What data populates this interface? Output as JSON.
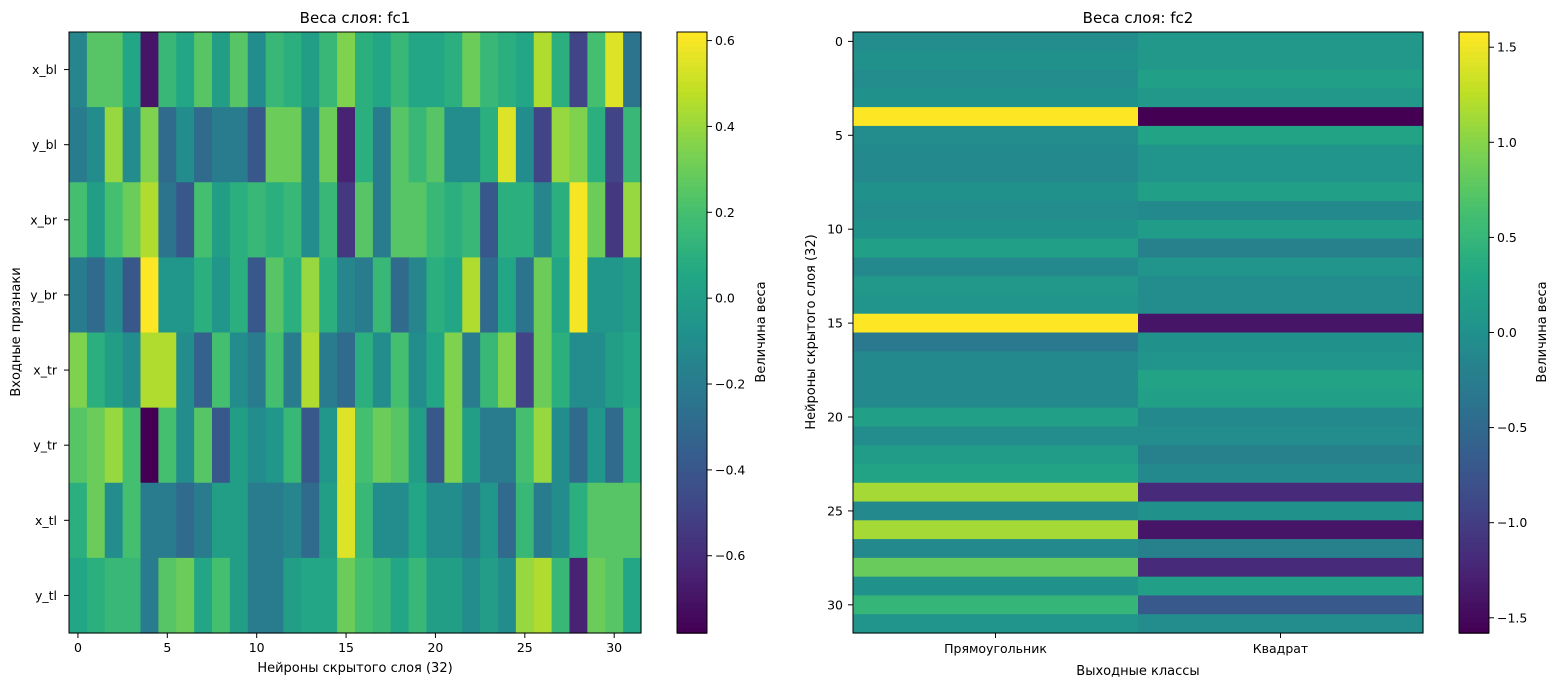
{
  "chart_data": [
    {
      "type": "heatmap",
      "title": "Веса слоя: fc1",
      "xlabel": "Нейроны скрытого слоя (32)",
      "ylabel": "Входные признаки",
      "rows": [
        "x_bl",
        "y_bl",
        "x_br",
        "y_br",
        "x_tr",
        "y_tr",
        "x_tl",
        "y_tl"
      ],
      "x_ticks": [
        0,
        5,
        10,
        15,
        20,
        25,
        30
      ],
      "colormap": "viridis",
      "vmin": -0.78,
      "vmax": 0.62,
      "colorbar": {
        "label": "Величина веса",
        "ticks": [
          -0.6,
          -0.4,
          -0.2,
          0.0,
          0.2,
          0.4,
          0.6
        ],
        "tick_labels": [
          "−0.6",
          "−0.4",
          "−0.2",
          "0.0",
          "0.2",
          "0.4",
          "0.6"
        ]
      },
      "values": [
        [
          -0.15,
          0.25,
          0.25,
          0.05,
          -0.7,
          0.15,
          0.05,
          0.25,
          0.0,
          0.25,
          -0.1,
          0.15,
          0.1,
          0.0,
          0.15,
          0.35,
          0.1,
          0.05,
          0.15,
          0.05,
          0.05,
          0.1,
          0.3,
          0.15,
          0.1,
          0.05,
          0.45,
          0.1,
          -0.5,
          0.2,
          0.55,
          -0.25
        ],
        [
          -0.2,
          -0.1,
          0.4,
          -0.1,
          0.35,
          -0.3,
          -0.1,
          -0.3,
          -0.2,
          -0.2,
          -0.4,
          0.3,
          0.3,
          -0.1,
          0.3,
          -0.65,
          0.1,
          -0.2,
          0.25,
          0.15,
          0.25,
          -0.1,
          -0.1,
          0.1,
          0.55,
          -0.1,
          -0.5,
          0.4,
          0.35,
          0.1,
          -0.5,
          0.15
        ],
        [
          0.2,
          0.0,
          0.2,
          0.3,
          0.45,
          -0.25,
          -0.4,
          0.2,
          0.0,
          0.1,
          0.15,
          0.1,
          0.15,
          -0.1,
          0.15,
          -0.55,
          0.25,
          -0.2,
          0.25,
          0.25,
          0.15,
          0.1,
          0.15,
          -0.4,
          0.1,
          0.1,
          -0.15,
          0.1,
          0.6,
          0.3,
          -0.55,
          0.4
        ],
        [
          -0.2,
          -0.3,
          -0.1,
          -0.4,
          0.62,
          -0.05,
          -0.05,
          0.1,
          -0.05,
          0.1,
          -0.4,
          0.25,
          0.1,
          0.4,
          0.1,
          -0.15,
          -0.2,
          0.15,
          -0.3,
          -0.15,
          0.1,
          0.05,
          0.45,
          -0.3,
          0.05,
          -0.25,
          0.3,
          0.05,
          0.6,
          -0.05,
          -0.05,
          0.0
        ],
        [
          0.35,
          0.1,
          0.0,
          -0.1,
          0.45,
          0.45,
          -0.1,
          -0.35,
          0.2,
          -0.1,
          -0.2,
          0.2,
          -0.2,
          0.45,
          -0.2,
          -0.3,
          0.1,
          -0.1,
          0.2,
          -0.1,
          0.05,
          0.35,
          -0.2,
          0.15,
          0.35,
          -0.5,
          0.3,
          0.1,
          -0.1,
          -0.1,
          0.0,
          0.05
        ],
        [
          0.25,
          0.3,
          0.4,
          0.2,
          -0.78,
          0.2,
          -0.1,
          0.25,
          -0.4,
          0.0,
          -0.1,
          -0.05,
          0.15,
          -0.4,
          -0.05,
          0.55,
          0.2,
          0.3,
          0.25,
          0.0,
          -0.4,
          0.35,
          0.0,
          -0.2,
          -0.2,
          0.2,
          0.4,
          -0.1,
          -0.3,
          -0.05,
          -0.3,
          0.1
        ],
        [
          0.1,
          0.3,
          -0.1,
          0.2,
          -0.2,
          -0.2,
          -0.3,
          -0.2,
          0.0,
          0.0,
          -0.2,
          -0.2,
          -0.15,
          -0.3,
          0.0,
          0.55,
          0.15,
          -0.1,
          -0.1,
          0.05,
          -0.1,
          -0.1,
          -0.2,
          -0.05,
          -0.3,
          0.15,
          -0.2,
          -0.1,
          0.1,
          0.25,
          0.25,
          0.25
        ],
        [
          0.05,
          0.1,
          0.15,
          0.15,
          -0.2,
          0.25,
          0.3,
          0.05,
          0.2,
          0.0,
          -0.2,
          -0.2,
          0.0,
          0.05,
          0.05,
          0.3,
          0.2,
          0.15,
          0.05,
          0.15,
          0.0,
          0.0,
          -0.1,
          0.0,
          -0.1,
          0.4,
          0.45,
          0.15,
          -0.65,
          0.3,
          0.25,
          0.05
        ]
      ]
    },
    {
      "type": "heatmap",
      "title": "Веса слоя: fc2",
      "xlabel": "Выходные классы",
      "ylabel": "Нейроны скрытого слоя (32)",
      "columns": [
        "Прямоугольник",
        "Квадрат"
      ],
      "y_ticks": [
        0,
        5,
        10,
        15,
        20,
        25,
        30
      ],
      "colormap": "viridis",
      "vmin": -1.58,
      "vmax": 1.58,
      "colorbar": {
        "label": "Величина веса",
        "ticks": [
          -1.5,
          -1.0,
          -0.5,
          0.0,
          0.5,
          1.0,
          1.5
        ],
        "tick_labels": [
          "−1.5",
          "−1.0",
          "−0.5",
          "0.0",
          "0.5",
          "1.0",
          "1.5"
        ]
      },
      "values": [
        [
          -0.05,
          0.1
        ],
        [
          0.0,
          0.1
        ],
        [
          -0.05,
          0.2
        ],
        [
          0.0,
          0.1
        ],
        [
          1.58,
          -1.58
        ],
        [
          -0.05,
          0.25
        ],
        [
          -0.1,
          0.05
        ],
        [
          -0.1,
          0.05
        ],
        [
          0.0,
          0.2
        ],
        [
          -0.05,
          -0.1
        ],
        [
          0.0,
          0.15
        ],
        [
          0.2,
          -0.2
        ],
        [
          -0.1,
          0.05
        ],
        [
          0.1,
          -0.05
        ],
        [
          0.05,
          -0.05
        ],
        [
          1.58,
          -1.4
        ],
        [
          -0.3,
          0.0
        ],
        [
          -0.1,
          0.05
        ],
        [
          -0.1,
          0.25
        ],
        [
          -0.1,
          0.2
        ],
        [
          0.2,
          -0.1
        ],
        [
          -0.05,
          -0.05
        ],
        [
          0.15,
          -0.2
        ],
        [
          0.25,
          -0.1
        ],
        [
          1.15,
          -1.2
        ],
        [
          -0.1,
          0.0
        ],
        [
          1.15,
          -1.4
        ],
        [
          -0.1,
          -0.2
        ],
        [
          0.85,
          -1.2
        ],
        [
          0.0,
          0.2
        ],
        [
          0.5,
          -0.7
        ],
        [
          0.05,
          -0.05
        ]
      ]
    }
  ]
}
